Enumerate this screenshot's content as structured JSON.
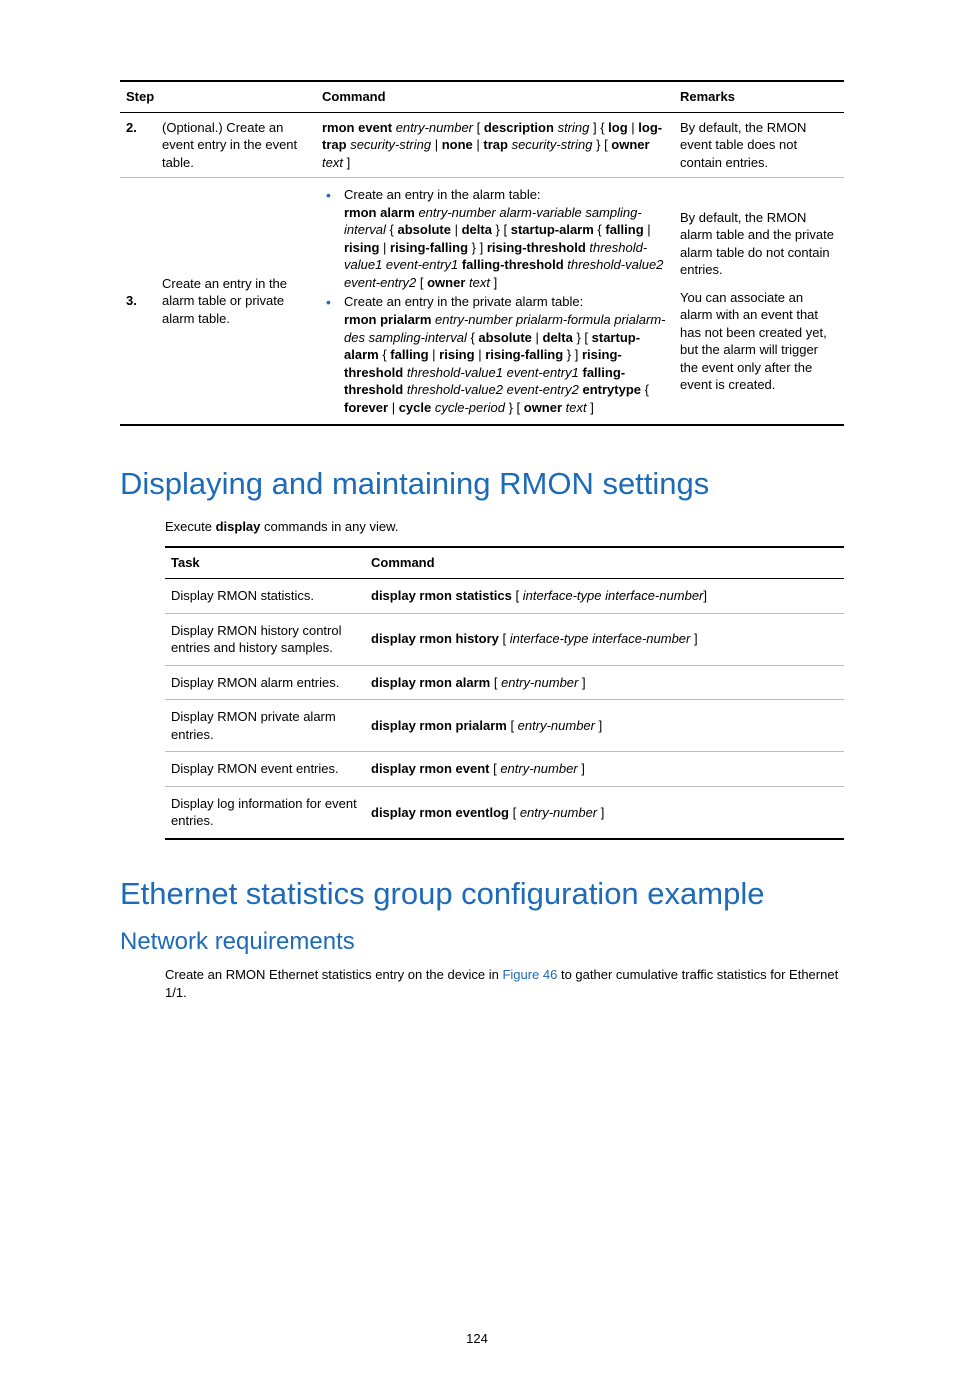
{
  "colors": {
    "accent": "#1d6bb8",
    "text": "#000000",
    "rule_heavy": "#000000",
    "rule_light": "#bbbbbb",
    "background": "#ffffff"
  },
  "typography": {
    "body_fontsize_pt": 10,
    "h1_fontsize_pt": 23,
    "h2_fontsize_pt": 18
  },
  "table1": {
    "headers": {
      "step": "Step",
      "command": "Command",
      "remarks": "Remarks"
    },
    "rows": [
      {
        "no": "2.",
        "step": "(Optional.) Create an event entry in the event table.",
        "command_html": "<span class='bold'>rmon event</span> <span class='ital'>entry-number</span> [ <span class='bold'>description</span> <span class='ital'>string</span> ] { <span class='bold'>log</span> | <span class='bold'>log-trap</span> <span class='ital'>security-string</span> | <span class='bold'>none</span> | <span class='bold'>trap</span> <span class='ital'>security-string</span> } [ <span class='bold'>owner</span> <span class='ital'>text</span> ]",
        "remarks": "By default, the RMON event table does not contain entries."
      },
      {
        "no": "3.",
        "step": "Create an entry in the alarm table or private alarm table.",
        "bullets": [
          {
            "lead": "Create an entry in the alarm table:",
            "syntax_html": "<span class='bold'>rmon alarm</span> <span class='ital'>entry-number alarm-variable sampling-interval</span> { <span class='bold'>absolute</span> | <span class='bold'>delta</span> } [ <span class='bold'>startup-alarm</span> { <span class='bold'>falling</span> | <span class='bold'>rising</span> | <span class='bold'>rising-falling</span> } ] <span class='bold'>rising-threshold</span> <span class='ital'>threshold-value1 event-entry1</span> <span class='bold'>falling-threshold</span> <span class='ital'>threshold-value2 event-entry2</span> [ <span class='bold'>owner</span> <span class='ital'>text</span> ]"
          },
          {
            "lead": "Create an entry in the private alarm table:",
            "syntax_html": "<span class='bold'>rmon prialarm</span> <span class='ital'>entry-number prialarm-formula prialarm-des sampling-interval</span> { <span class='bold'>absolute</span> | <span class='bold'>delta</span> } [ <span class='bold'>startup-alarm</span> { <span class='bold'>falling</span> | <span class='bold'>rising</span> | <span class='bold'>rising-falling</span> } ] <span class='bold'>rising-threshold</span> <span class='ital'>threshold-value1 event-entry1</span> <span class='bold'>falling-threshold</span> <span class='ital'>threshold-value2 event-entry2</span> <span class='bold'>entrytype</span> { <span class='bold'>forever</span> | <span class='bold'>cycle</span> <span class='ital'>cycle-period</span> } [ <span class='bold'>owner</span> <span class='ital'>text</span> ]"
          }
        ],
        "remarks_paras": [
          "By default, the RMON alarm table and the private alarm table do not contain entries.",
          "You can associate an alarm with an event that has not been created yet, but the alarm will trigger the event only after the event is created."
        ]
      }
    ]
  },
  "section1": {
    "title": "Displaying and maintaining RMON settings",
    "intro_html": "Execute <span class='bold'>display</span> commands in any view."
  },
  "table2": {
    "headers": {
      "task": "Task",
      "command": "Command"
    },
    "rows": [
      {
        "task": "Display RMON statistics.",
        "command_html": "<span class='bold'>display rmon statistics</span> [ <span class='ital'>interface-type interface-number</span>]"
      },
      {
        "task": "Display RMON history control entries and history samples.",
        "command_html": "<span class='bold'>display rmon history</span> [ <span class='ital'>interface-type interface-number</span> ]"
      },
      {
        "task": "Display RMON alarm entries.",
        "command_html": "<span class='bold'>display rmon alarm</span> [ <span class='ital'>entry-number</span> ]"
      },
      {
        "task": "Display RMON private alarm entries.",
        "command_html": "<span class='bold'>display rmon prialarm</span> [ <span class='ital'>entry-number</span> ]"
      },
      {
        "task": "Display RMON event entries.",
        "command_html": "<span class='bold'>display rmon event</span> [ <span class='ital'>entry-number</span> ]"
      },
      {
        "task": "Display log information for event entries.",
        "command_html": "<span class='bold'>display rmon eventlog</span> [ <span class='ital'>entry-number</span> ]"
      }
    ]
  },
  "section2": {
    "title": "Ethernet statistics group configuration example",
    "subtitle": "Network requirements",
    "body_pre": "Create an RMON Ethernet statistics entry on the device in ",
    "link_text": "Figure 46",
    "body_post": " to gather cumulative traffic statistics for Ethernet 1/1."
  },
  "page_number": "124"
}
